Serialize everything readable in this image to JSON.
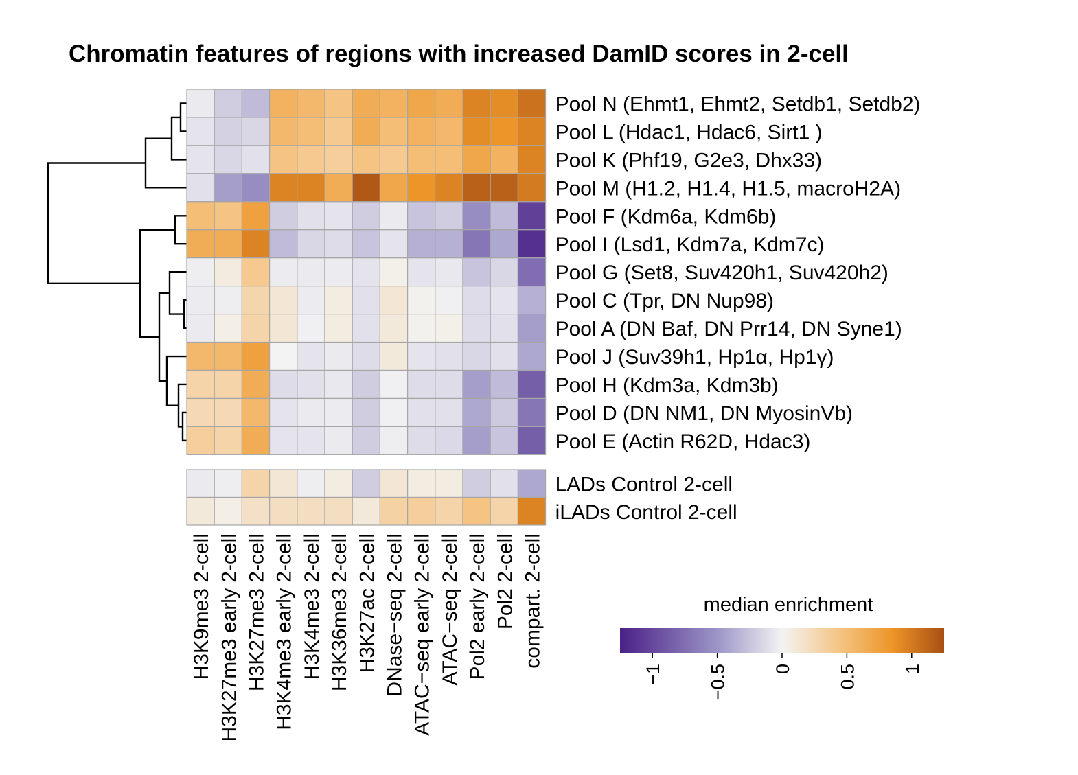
{
  "chart_data": {
    "type": "heatmap",
    "title": "Chromatin features of regions with increased DamID scores in 2-cell",
    "columns": [
      "H3K9me3 2-cell",
      "H3K27me3 early 2-cell",
      "H3K27me3 2-cell",
      "H3K4me3 early 2-cell",
      "H3K4me3 2-cell",
      "H3K36me3 2-cell",
      "H3K27ac 2-cell",
      "DNase−seq 2-cell",
      "ATAC−seq early 2-cell",
      "ATAC−seq 2-cell",
      "Pol2 early 2-cell",
      "Pol2 2-cell",
      "compart. 2-cell"
    ],
    "rows": [
      {
        "label": "Pool N (Ehmt1, Ehmt2, Setdb1, Setdb2)",
        "values": [
          -0.05,
          -0.2,
          -0.3,
          0.6,
          0.55,
          0.45,
          0.65,
          0.6,
          0.7,
          0.65,
          0.95,
          0.9,
          1.05
        ]
      },
      {
        "label": "Pool L (Hdac1, Hdac6, Sirt1 )",
        "values": [
          -0.08,
          -0.18,
          -0.15,
          0.55,
          0.5,
          0.4,
          0.65,
          0.5,
          0.6,
          0.55,
          0.9,
          0.85,
          0.95
        ]
      },
      {
        "label": "Pool K (Phf19, G2e3, Dhx33)",
        "values": [
          -0.08,
          -0.15,
          -0.1,
          0.45,
          0.4,
          0.35,
          0.45,
          0.4,
          0.5,
          0.5,
          0.7,
          0.6,
          0.95
        ]
      },
      {
        "label": "Pool M (H1.2, H1.4, H1.5, macroH2A)",
        "values": [
          -0.1,
          -0.45,
          -0.55,
          0.95,
          0.95,
          0.65,
          1.2,
          0.7,
          0.85,
          0.95,
          1.15,
          1.15,
          1.0
        ]
      },
      {
        "label": "Pool F (Kdm6a, Kdm6b)",
        "values": [
          0.5,
          0.45,
          0.75,
          -0.2,
          -0.1,
          -0.08,
          -0.2,
          -0.05,
          -0.25,
          -0.2,
          -0.55,
          -0.3,
          -1.05
        ]
      },
      {
        "label": "Pool I (Lsd1, Kdm7a, Kdm7c)",
        "values": [
          0.65,
          0.65,
          0.95,
          -0.3,
          -0.15,
          -0.12,
          -0.25,
          -0.08,
          -0.35,
          -0.35,
          -0.7,
          -0.4,
          -1.15
        ]
      },
      {
        "label": "Pool G (Set8, Suv420h1, Suv420h2)",
        "values": [
          -0.03,
          0.08,
          0.4,
          -0.04,
          -0.05,
          -0.04,
          -0.08,
          0.04,
          -0.08,
          -0.06,
          -0.25,
          -0.15,
          -0.75
        ]
      },
      {
        "label": "Pool C (Tpr, DN Nup98)",
        "values": [
          -0.04,
          -0.03,
          0.28,
          0.12,
          -0.04,
          0.07,
          -0.1,
          0.12,
          0.02,
          -0.02,
          -0.12,
          -0.08,
          -0.35
        ]
      },
      {
        "label": "Pool A (DN Baf, DN Prr14, DN Syne1)",
        "values": [
          -0.05,
          0.05,
          0.3,
          0.12,
          -0.02,
          0.07,
          -0.1,
          0.1,
          0.02,
          0.04,
          -0.12,
          -0.1,
          -0.45
        ]
      },
      {
        "label": "Pool J (Suv39h1, Hp1α, Hp1γ)",
        "values": [
          0.55,
          0.55,
          0.75,
          0.0,
          -0.08,
          -0.05,
          -0.12,
          0.1,
          -0.08,
          -0.1,
          -0.15,
          -0.1,
          -0.4
        ]
      },
      {
        "label": "Pool H (Kdm3a, Kdm3b)",
        "values": [
          0.3,
          0.3,
          0.65,
          -0.12,
          -0.1,
          -0.06,
          -0.2,
          -0.02,
          -0.12,
          -0.12,
          -0.45,
          -0.3,
          -0.85
        ]
      },
      {
        "label": "Pool D (DN NM1, DN MyosinVb)",
        "values": [
          0.25,
          0.25,
          0.55,
          -0.08,
          -0.05,
          -0.04,
          -0.2,
          -0.02,
          -0.1,
          -0.1,
          -0.4,
          -0.22,
          -0.7
        ]
      },
      {
        "label": "Pool E (Actin R62D, Hdac3)",
        "values": [
          0.35,
          0.3,
          0.65,
          -0.08,
          -0.08,
          -0.05,
          -0.2,
          -0.03,
          -0.12,
          -0.14,
          -0.45,
          -0.25,
          -0.85
        ]
      }
    ],
    "reference_rows": [
      {
        "label": "LADs  Control 2-cell",
        "values": [
          -0.05,
          -0.03,
          0.3,
          0.12,
          -0.03,
          0.07,
          -0.2,
          0.12,
          0.07,
          0.07,
          -0.2,
          -0.1,
          -0.4
        ]
      },
      {
        "label": "iLADs Control 2-cell",
        "values": [
          0.1,
          0.05,
          0.18,
          0.2,
          0.2,
          0.2,
          0.1,
          0.32,
          0.35,
          0.3,
          0.45,
          0.3,
          0.95
        ]
      }
    ],
    "dendrogram_leaf_order": [
      "Pool N",
      "Pool L",
      "Pool K",
      "Pool M",
      "Pool F",
      "Pool I",
      "Pool G",
      "Pool C",
      "Pool A",
      "Pool J",
      "Pool H",
      "Pool D",
      "Pool E"
    ],
    "colorbar": {
      "title": "median enrichment",
      "range": [
        -1.25,
        1.25
      ],
      "ticks": [
        -1,
        -0.5,
        0,
        0.5,
        1
      ],
      "tick_labels": [
        "−1",
        "−0.5",
        "0",
        "0.5",
        "1"
      ],
      "colors": {
        "negative_end": "#4b2187",
        "mid_negative": "#9c95c7",
        "zero": "#f3f3f3",
        "mid_positive": "#f5c482",
        "positive_mid": "#ed9528",
        "positive_end": "#a84f14"
      }
    }
  }
}
